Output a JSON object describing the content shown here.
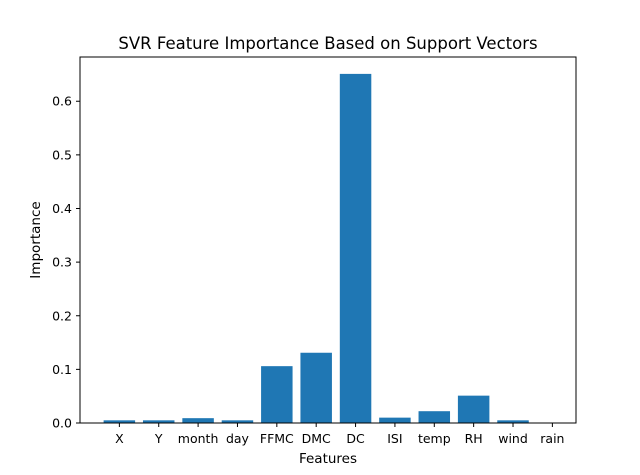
{
  "chart_data": {
    "type": "bar",
    "title": "SVR Feature Importance Based on Support Vectors",
    "xlabel": "Features",
    "ylabel": "Importance",
    "categories": [
      "X",
      "Y",
      "month",
      "day",
      "FFMC",
      "DMC",
      "DC",
      "ISI",
      "temp",
      "RH",
      "wind",
      "rain"
    ],
    "values": [
      0.005,
      0.005,
      0.009,
      0.005,
      0.106,
      0.131,
      0.651,
      0.01,
      0.022,
      0.051,
      0.005,
      0.0
    ],
    "ylim": [
      0,
      0.6825
    ],
    "yticks": [
      0.0,
      0.1,
      0.2,
      0.3,
      0.4,
      0.5,
      0.6
    ],
    "ytick_labels": [
      "0.0",
      "0.1",
      "0.2",
      "0.3",
      "0.4",
      "0.5",
      "0.6"
    ],
    "bar_color": "#1f77b4",
    "grid": false,
    "legend": "none"
  }
}
